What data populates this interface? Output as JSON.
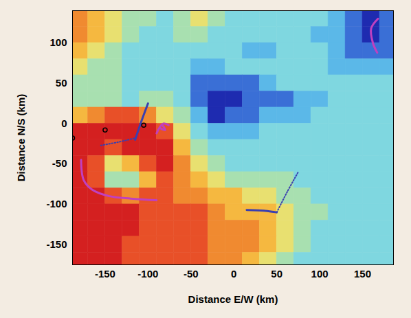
{
  "chart_data": {
    "type": "heatmap",
    "x_label": "Distance E/W (km)",
    "y_label": "Distance N/S (km)",
    "xlim": [
      -188,
      186
    ],
    "ylim": [
      -175,
      140
    ],
    "xticks": [
      -150,
      -100,
      -50,
      0,
      50,
      100,
      150
    ],
    "yticks": [
      100,
      50,
      0,
      -50,
      -100,
      -150
    ],
    "cell_x": [
      -180,
      -160,
      -140,
      -120,
      -100,
      -80,
      -60,
      -40,
      -20,
      0,
      20,
      40,
      60,
      80,
      100,
      120,
      140,
      160,
      180
    ],
    "cell_y": [
      130,
      110,
      90,
      70,
      50,
      30,
      10,
      -10,
      -30,
      -50,
      -70,
      -90,
      -110,
      -130,
      -150,
      -170
    ],
    "cells": [
      [
        7,
        6,
        5,
        4,
        4,
        3,
        4,
        5,
        4,
        3,
        3,
        3,
        3,
        3,
        3,
        2,
        1,
        0,
        1
      ],
      [
        7,
        6,
        5,
        4,
        3,
        3,
        4,
        4,
        3,
        3,
        3,
        3,
        3,
        3,
        2,
        2,
        1,
        0,
        1
      ],
      [
        6,
        5,
        4,
        3,
        3,
        3,
        3,
        3,
        3,
        3,
        2,
        2,
        3,
        3,
        3,
        2,
        1,
        1,
        1
      ],
      [
        5,
        4,
        4,
        3,
        3,
        3,
        3,
        2,
        2,
        3,
        3,
        3,
        3,
        3,
        3,
        2,
        2,
        2,
        2
      ],
      [
        4,
        4,
        4,
        3,
        3,
        3,
        3,
        1,
        1,
        1,
        1,
        2,
        3,
        3,
        3,
        3,
        3,
        3,
        3
      ],
      [
        4,
        4,
        4,
        3,
        4,
        4,
        3,
        1,
        0,
        0,
        1,
        1,
        1,
        2,
        2,
        3,
        3,
        3,
        3
      ],
      [
        6,
        7,
        8,
        8,
        7,
        5,
        4,
        2,
        0,
        1,
        1,
        2,
        2,
        2,
        3,
        3,
        3,
        3,
        3
      ],
      [
        9,
        9,
        9,
        9,
        9,
        8,
        5,
        3,
        2,
        2,
        2,
        3,
        3,
        3,
        3,
        3,
        3,
        3,
        3
      ],
      [
        9,
        9,
        8,
        9,
        9,
        9,
        6,
        4,
        3,
        3,
        3,
        3,
        3,
        3,
        3,
        3,
        3,
        3,
        3
      ],
      [
        9,
        8,
        5,
        6,
        8,
        9,
        7,
        5,
        4,
        3,
        3,
        3,
        3,
        3,
        3,
        3,
        3,
        3,
        3
      ],
      [
        9,
        8,
        4,
        4,
        6,
        8,
        7,
        6,
        5,
        4,
        4,
        4,
        4,
        3,
        3,
        3,
        3,
        3,
        3
      ],
      [
        9,
        9,
        8,
        7,
        8,
        8,
        7,
        7,
        6,
        6,
        5,
        5,
        4,
        4,
        3,
        3,
        3,
        3,
        3
      ],
      [
        9,
        9,
        9,
        9,
        8,
        8,
        8,
        8,
        7,
        6,
        6,
        6,
        5,
        4,
        4,
        3,
        3,
        3,
        3
      ],
      [
        9,
        9,
        9,
        9,
        8,
        8,
        8,
        8,
        7,
        7,
        7,
        6,
        5,
        4,
        3,
        3,
        3,
        3,
        3
      ],
      [
        9,
        9,
        9,
        8,
        8,
        8,
        8,
        8,
        7,
        7,
        7,
        6,
        5,
        4,
        3,
        3,
        3,
        3,
        3
      ],
      [
        9,
        9,
        9,
        8,
        8,
        8,
        8,
        8,
        7,
        7,
        6,
        5,
        4,
        3,
        3,
        3,
        3,
        3,
        3
      ]
    ],
    "color_range": [
      0,
      9
    ],
    "tick_labels": true,
    "series": [
      {
        "type": "line",
        "color": "#3a3fb0",
        "line_style": "solid",
        "x": [
          -115,
          -108,
          -100
        ],
        "y": [
          -20,
          2,
          25
        ]
      },
      {
        "type": "line",
        "color": "#3a3fb0",
        "line_style": "dotted",
        "x": [
          -155,
          -135,
          -115
        ],
        "y": [
          -27,
          -23,
          -18
        ]
      },
      {
        "type": "line",
        "color": "#3a3fb0",
        "line_style": "solid",
        "x": [
          15,
          35,
          50
        ],
        "y": [
          -107,
          -108,
          -110
        ]
      },
      {
        "type": "line",
        "color": "#3a3fb0",
        "line_style": "dotted",
        "x": [
          50,
          62,
          75
        ],
        "y": [
          -110,
          -85,
          -60
        ]
      },
      {
        "type": "line",
        "color": "#c040c0",
        "line_style": "solid",
        "x": [
          -178,
          -175,
          -165,
          -145,
          -120,
          -90
        ],
        "y": [
          -45,
          -70,
          -82,
          -90,
          -93,
          -95
        ]
      },
      {
        "type": "line",
        "color": "#c040c0",
        "line_style": "solid",
        "x": [
          -90,
          -84,
          -80,
          -86,
          -82,
          -76
        ],
        "y": [
          -12,
          -2,
          -8,
          -5,
          0,
          -2
        ]
      },
      {
        "type": "line",
        "color": "#c040c0",
        "line_style": "solid",
        "x": [
          168,
          160,
          162,
          167
        ],
        "y": [
          130,
          118,
          100,
          88
        ]
      },
      {
        "type": "scatter",
        "color": "#000000",
        "marker": "circle",
        "x": [
          -188,
          -150,
          -105
        ],
        "y": [
          -18,
          -8,
          -2
        ]
      }
    ]
  }
}
